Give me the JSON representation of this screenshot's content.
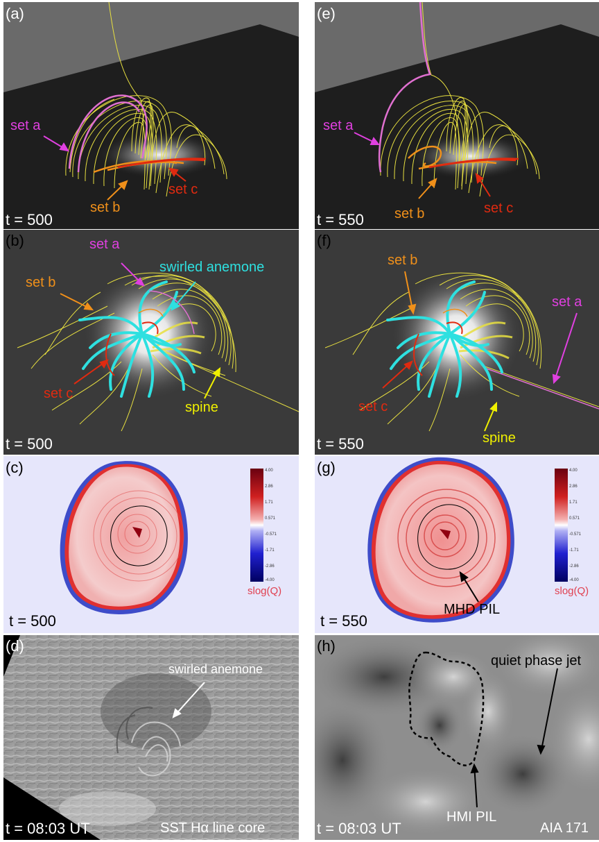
{
  "panels": {
    "a": {
      "label": "(a)",
      "time": "t = 500",
      "set_a": "set a",
      "set_b": "set b",
      "set_c": "set c"
    },
    "e": {
      "label": "(e)",
      "time": "t = 550",
      "set_a": "set a",
      "set_b": "set b",
      "set_c": "set c"
    },
    "b": {
      "label": "(b)",
      "time": "t = 500",
      "set_a": "set a",
      "set_b": "set b",
      "set_c": "set c",
      "anemone": "swirled anemone",
      "spine": "spine"
    },
    "f": {
      "label": "(f)",
      "time": "t = 550",
      "set_a": "set a",
      "set_b": "set b",
      "set_c": "set c",
      "spine": "spine"
    },
    "c": {
      "label": "(c)",
      "time": "t = 500",
      "colorbar_title": "slog(Q)",
      "ticks": [
        "4.00",
        "2.86",
        "1.71",
        "0.571",
        "-0.571",
        "-1.71",
        "-2.86",
        "-4.00"
      ]
    },
    "g": {
      "label": "(g)",
      "time": "t = 550",
      "colorbar_title": "slog(Q)",
      "pil": "MHD PIL",
      "ticks": [
        "4.00",
        "2.86",
        "1.71",
        "0.571",
        "-0.571",
        "-1.71",
        "-2.86",
        "-4.00"
      ]
    },
    "d": {
      "label": "(d)",
      "time": "t = 08:03 UT",
      "instrument": "SST Hα line core",
      "anemone": "swirled anemone"
    },
    "h": {
      "label": "(h)",
      "time": "t = 08:03 UT",
      "instrument": "AIA 171",
      "jet": "quiet phase jet",
      "pil": "HMI PIL"
    }
  },
  "colors": {
    "set_a": "#e040e0",
    "set_b": "#f0901a",
    "set_c": "#e02a10",
    "anemone": "#2ee0e0",
    "spine": "#f0f000",
    "field_lines": "#e8e040",
    "colorbar_title": "#e04050"
  }
}
